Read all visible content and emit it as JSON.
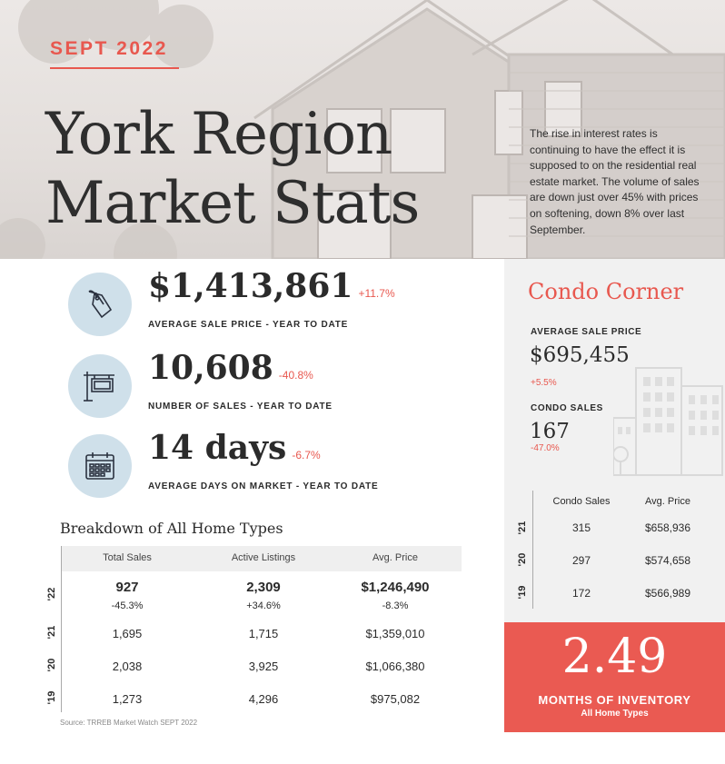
{
  "header": {
    "date": "SEPT 2022",
    "title_line1": "York Region",
    "title_line2": "Market Stats",
    "intro": "The rise in interest rates is continuing to have the effect it is supposed to on the residential real estate market.  The volume of sales are down just over 45% with prices on softening, down 8% over last September."
  },
  "stats": [
    {
      "value": "$1,413,861",
      "change": "+11.7%",
      "label": "AVERAGE SALE PRICE - YEAR TO DATE",
      "icon": "price-tag-icon"
    },
    {
      "value": "10,608",
      "change": "-40.8%",
      "label": "NUMBER OF SALES - YEAR TO DATE",
      "icon": "sale-sign-icon"
    },
    {
      "value": "14 days",
      "change": "-6.7%",
      "label": "AVERAGE DAYS ON MARKET - YEAR TO DATE",
      "icon": "calendar-icon"
    }
  ],
  "breakdown": {
    "title": "Breakdown of All Home Types",
    "headers": [
      "Total Sales",
      "Active Listings",
      "Avg. Price"
    ],
    "rows": [
      {
        "year": "'22",
        "cells": [
          "927",
          "2,309",
          "$1,246,490"
        ],
        "changes": [
          "-45.3%",
          "+34.6%",
          "-8.3%"
        ]
      },
      {
        "year": "'21",
        "cells": [
          "1,695",
          "1,715",
          "$1,359,010"
        ]
      },
      {
        "year": "'20",
        "cells": [
          "2,038",
          "3,925",
          "$1,066,380"
        ]
      },
      {
        "year": "'19",
        "cells": [
          "1,273",
          "4,296",
          "$975,082"
        ]
      }
    ],
    "source": "Source: TRREB Market Watch SEPT 2022"
  },
  "condo": {
    "title": "Condo Corner",
    "avg_label": "AVERAGE SALE PRICE",
    "avg_value": "$695,455",
    "avg_change": "+5.5%",
    "sales_label": "CONDO SALES",
    "sales_value": "167",
    "sales_change": "-47.0%",
    "headers": [
      "Condo Sales",
      "Avg. Price"
    ],
    "rows": [
      {
        "year": "'21",
        "cells": [
          "315",
          "$658,936"
        ]
      },
      {
        "year": "'20",
        "cells": [
          "297",
          "$574,658"
        ]
      },
      {
        "year": "'19",
        "cells": [
          "172",
          "$566,989"
        ]
      }
    ]
  },
  "inventory": {
    "value": "2.49",
    "label": "MONTHS OF INVENTORY",
    "sub": "All Home Types"
  },
  "colors": {
    "accent": "#e8584f",
    "icon_circle": "#cfe0ea",
    "panel": "#f1f1f1"
  }
}
